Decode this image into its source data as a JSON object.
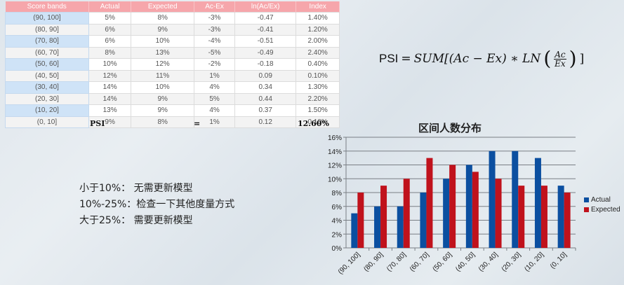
{
  "table": {
    "headers": [
      "Score bands",
      "Actual",
      "Expected",
      "Ac-Ex",
      "ln(Ac/Ex)",
      "Index"
    ],
    "rows": [
      [
        "(90, 100]",
        "5%",
        "8%",
        "-3%",
        "-0.47",
        "1.40%"
      ],
      [
        "(80, 90]",
        "6%",
        "9%",
        "-3%",
        "-0.41",
        "1.20%"
      ],
      [
        "(70, 80]",
        "6%",
        "10%",
        "-4%",
        "-0.51",
        "2.00%"
      ],
      [
        "(60, 70]",
        "8%",
        "13%",
        "-5%",
        "-0.49",
        "2.40%"
      ],
      [
        "(50, 60]",
        "10%",
        "12%",
        "-2%",
        "-0.18",
        "0.40%"
      ],
      [
        "(40, 50]",
        "12%",
        "11%",
        "1%",
        "0.09",
        "0.10%"
      ],
      [
        "(30, 40]",
        "14%",
        "10%",
        "4%",
        "0.34",
        "1.30%"
      ],
      [
        "(20, 30]",
        "14%",
        "9%",
        "5%",
        "0.44",
        "2.20%"
      ],
      [
        "(10, 20]",
        "13%",
        "9%",
        "4%",
        "0.37",
        "1.50%"
      ],
      [
        "(0, 10]",
        "9%",
        "8%",
        "1%",
        "0.12",
        "0.10%"
      ]
    ],
    "summary": {
      "label": "PSI",
      "equals": "=",
      "value": "12.60%"
    }
  },
  "formula": {
    "lhs": "PSI",
    "eq": "=",
    "sum": "SUM[(Ac − Ex) ∗ LN",
    "num": "Ac",
    "den": "Ex",
    "close": "]"
  },
  "rules": [
    "小于10%：  无需更新模型",
    "10%-25%：检查一下其他度量方式",
    "大于25%：  需要更新模型"
  ],
  "colors": {
    "actual": "#0b4fa0",
    "expected": "#c0121c",
    "header": "#f6a6ab",
    "band": "#cfe3f7"
  },
  "chart_data": {
    "type": "bar",
    "title": "区间人数分布",
    "categories": [
      "(90, 100]",
      "(80, 90]",
      "(70, 80]",
      "(60, 70]",
      "(50, 60]",
      "(40, 50]",
      "(30, 40]",
      "(20, 30]",
      "(10, 20]",
      "(0, 10]"
    ],
    "series": [
      {
        "name": "Actual",
        "values": [
          5,
          6,
          6,
          8,
          10,
          12,
          14,
          14,
          13,
          9
        ]
      },
      {
        "name": "Expected",
        "values": [
          8,
          9,
          10,
          13,
          12,
          11,
          10,
          9,
          9,
          8
        ]
      }
    ],
    "yticks": [
      "0%",
      "2%",
      "4%",
      "6%",
      "8%",
      "10%",
      "12%",
      "14%",
      "16%"
    ],
    "ylim": [
      0,
      16
    ],
    "xlabel": "",
    "ylabel": "",
    "grid": true,
    "legend_position": "right"
  }
}
